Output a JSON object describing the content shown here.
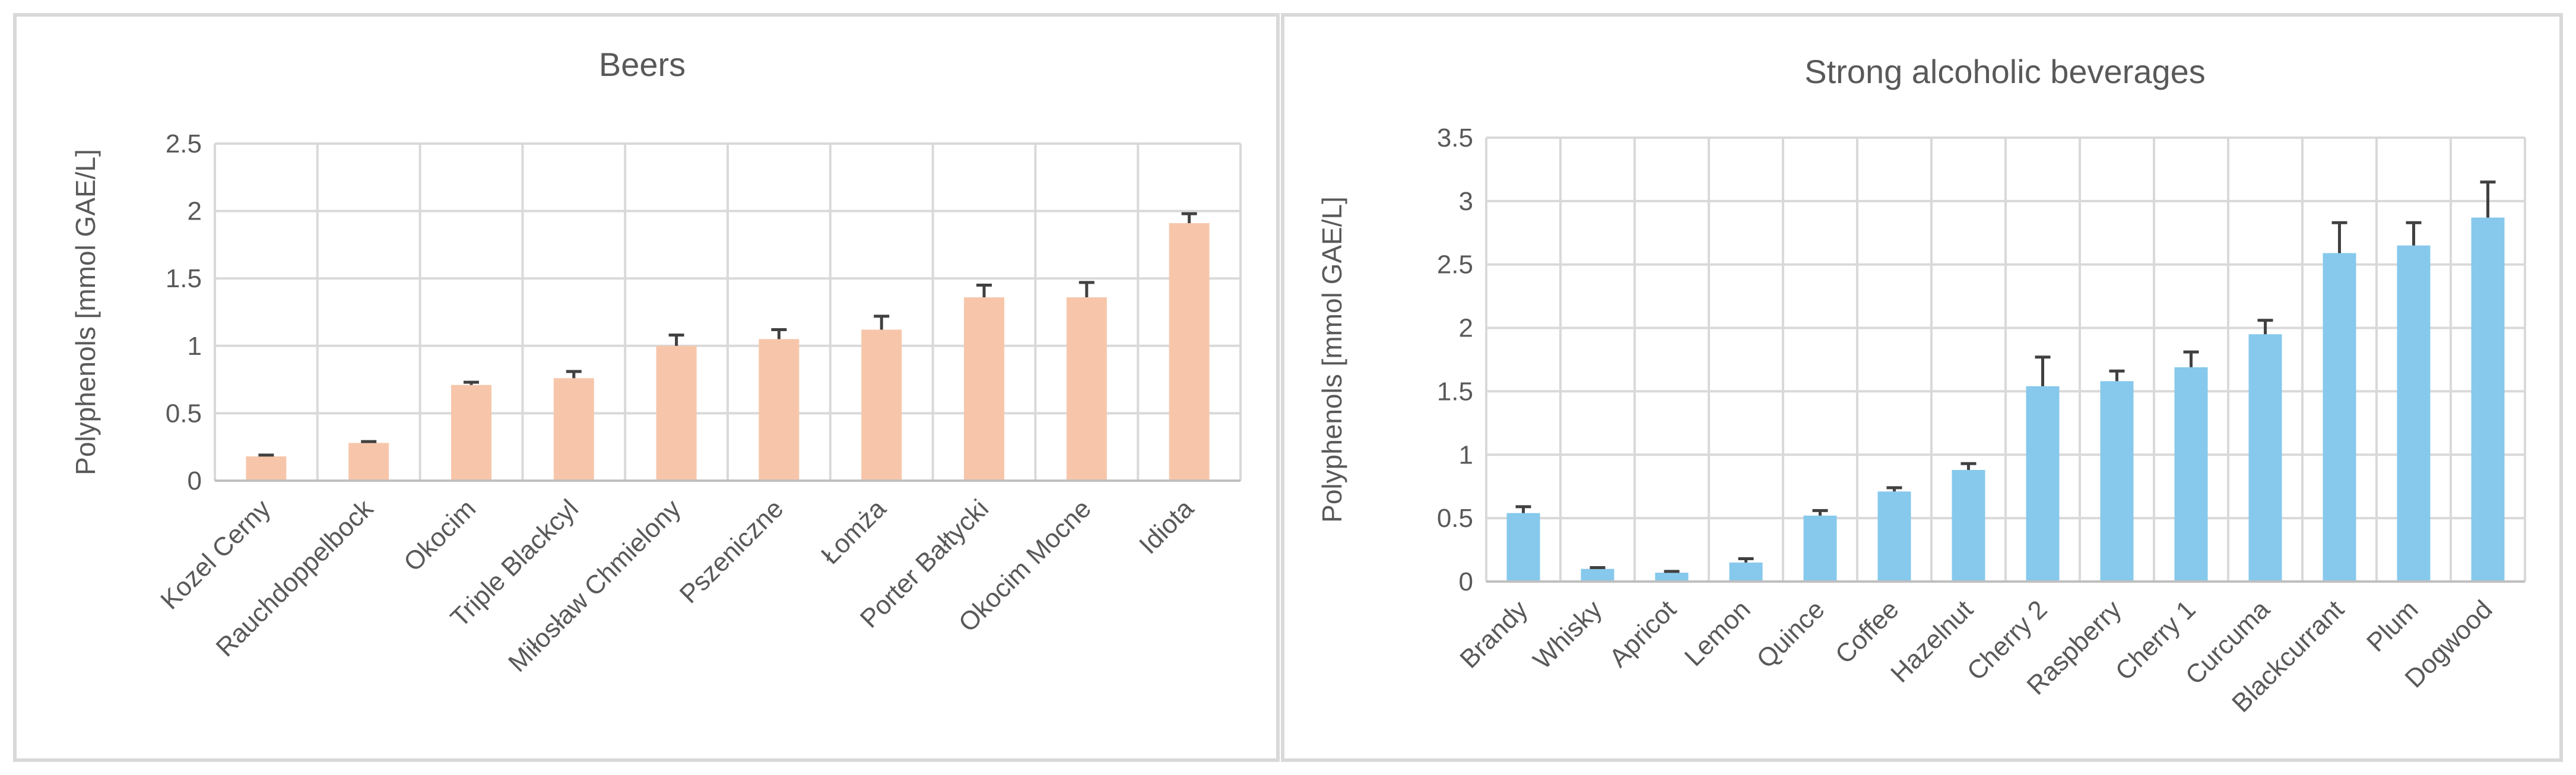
{
  "chart_data": [
    {
      "type": "bar",
      "title": "Beers",
      "ylabel": "Polyphenols [mmol GAE/L]",
      "xlabel": "",
      "ylim": [
        0,
        2.5
      ],
      "yticks": [
        "0",
        "0.5",
        "1",
        "1.5",
        "2",
        "2.5"
      ],
      "grid": true,
      "bar_color": "#f7c6aa",
      "error_color": "#404040",
      "categories": [
        "Kozel Cerny",
        "Rauchdoppelbock",
        "Okocim",
        "Triple Blackcyl",
        "Miłosław Chmielony",
        "Pszeniczne",
        "Łomża",
        "Porter Bałtycki",
        "Okocim Mocne",
        "Idiota"
      ],
      "values": [
        0.18,
        0.28,
        0.71,
        0.76,
        1.0,
        1.05,
        1.12,
        1.36,
        1.36,
        1.91
      ],
      "errors": [
        0.01,
        0.01,
        0.02,
        0.05,
        0.08,
        0.07,
        0.1,
        0.09,
        0.11,
        0.07
      ]
    },
    {
      "type": "bar",
      "title": "Strong alcoholic beverages",
      "ylabel": "Polyphenols [mmol GAE/L]",
      "xlabel": "",
      "ylim": [
        0,
        3.5
      ],
      "yticks": [
        "0",
        "0.5",
        "1",
        "1.5",
        "2",
        "2.5",
        "3",
        "3.5"
      ],
      "grid": true,
      "bar_color": "#86c9ec",
      "error_color": "#404040",
      "categories": [
        "Brandy",
        "Whisky",
        "Apricot",
        "Lemon",
        "Quince",
        "Coffee",
        "Hazelnut",
        "Cherry 2",
        "Raspberry",
        "Cherry 1",
        "Curcuma",
        "Blackcurrant",
        "Plum",
        "Dogwood"
      ],
      "values": [
        0.54,
        0.1,
        0.07,
        0.15,
        0.52,
        0.71,
        0.88,
        1.54,
        1.58,
        1.69,
        1.95,
        2.59,
        2.65,
        2.87
      ],
      "errors": [
        0.05,
        0.01,
        0.01,
        0.03,
        0.04,
        0.03,
        0.05,
        0.23,
        0.08,
        0.12,
        0.11,
        0.24,
        0.18,
        0.28
      ]
    }
  ]
}
